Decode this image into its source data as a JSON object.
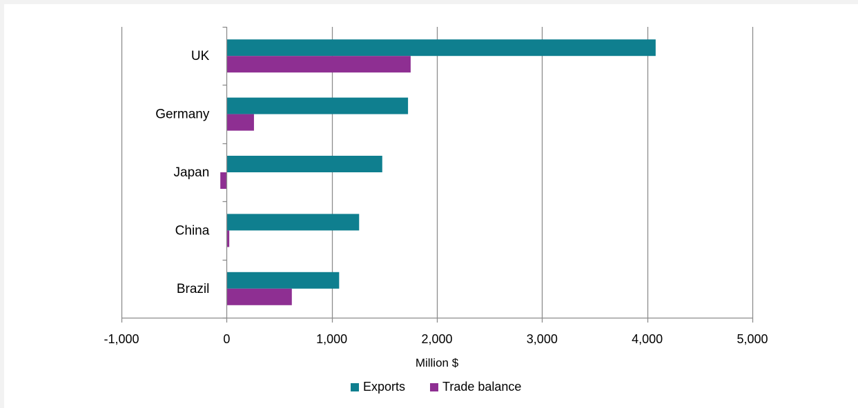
{
  "chart_data": {
    "type": "bar",
    "orientation": "horizontal",
    "categories": [
      "UK",
      "Germany",
      "Japan",
      "China",
      "Brazil"
    ],
    "series": [
      {
        "name": "Exports",
        "color": "#0f7f8f",
        "values": [
          4080,
          1725,
          1480,
          1260,
          1070
        ]
      },
      {
        "name": "Trade balance",
        "color": "#8e2f92",
        "values": [
          1750,
          260,
          -60,
          25,
          620
        ]
      }
    ],
    "xlabel": "Million $",
    "ylabel": "",
    "xlim": [
      -1000,
      5000
    ],
    "xticks": [
      -1000,
      0,
      1000,
      2000,
      3000,
      4000,
      5000
    ],
    "xtick_labels": [
      "-1,000",
      "0",
      "1,000",
      "2,000",
      "3,000",
      "4,000",
      "5,000"
    ],
    "grid": true,
    "legend": "bottom"
  }
}
